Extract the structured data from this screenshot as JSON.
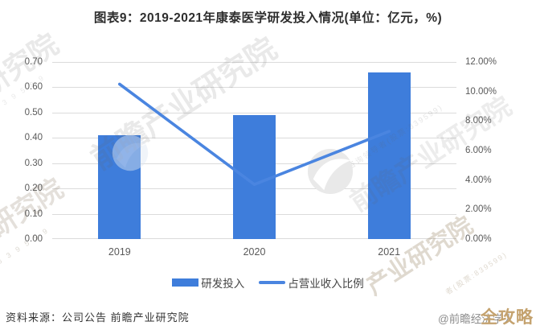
{
  "title": "图表9：2019-2021年康泰医学研发投入情况(单位：亿元，%)",
  "chart_data": {
    "type": "bar",
    "combo": "bar+line dual axis",
    "title": "图表9：2019-2021年康泰医学研发投入情况(单位：亿元，%)",
    "categories": [
      "2019",
      "2020",
      "2021"
    ],
    "series": [
      {
        "name": "研发投入",
        "type": "bar",
        "axis": "left",
        "unit": "亿元",
        "values": [
          0.41,
          0.49,
          0.66
        ]
      },
      {
        "name": "占营业收入比例",
        "type": "line",
        "axis": "right",
        "unit": "%",
        "values": [
          10.5,
          3.7,
          7.3
        ]
      }
    ],
    "left_axis": {
      "min": 0,
      "max": 0.7,
      "step": 0.1,
      "tick_labels": [
        "0.00",
        "0.10",
        "0.20",
        "0.30",
        "0.40",
        "0.50",
        "0.60",
        "0.70"
      ]
    },
    "right_axis": {
      "min": 0,
      "max": 12,
      "step": 2,
      "tick_labels": [
        "0.00%",
        "2.00%",
        "4.00%",
        "6.00%",
        "8.00%",
        "10.00%",
        "12.00%"
      ]
    },
    "grid": "horizontal",
    "legend_position": "bottom",
    "colors": {
      "bar": "#3E7DDB",
      "line": "#4A85E0",
      "grid": "#DBDBDB",
      "tick_text": "#595959"
    }
  },
  "legend": {
    "items": [
      {
        "label": "研发投入",
        "swatch": "bar"
      },
      {
        "label": "占营业收入比例",
        "swatch": "line"
      }
    ]
  },
  "footer": {
    "source": "资料来源：公司公告 前瞻产业研究院",
    "credit_account": "@前瞻经济学人",
    "credit_overlay": "全攻略",
    "credit_overlay_color": "#C4A26E"
  },
  "watermark": {
    "brand": "前瞻产业研究院",
    "brand_part": "业研究院",
    "brand_part2": "产业研究院",
    "tagline": "中国产业咨询领导者(股票:839599)",
    "stock_digits": "8 3 9 5 9 9",
    "tagline_tail": "者(股票:839599)",
    "logo": "qianzhan-swoosh-logo"
  }
}
